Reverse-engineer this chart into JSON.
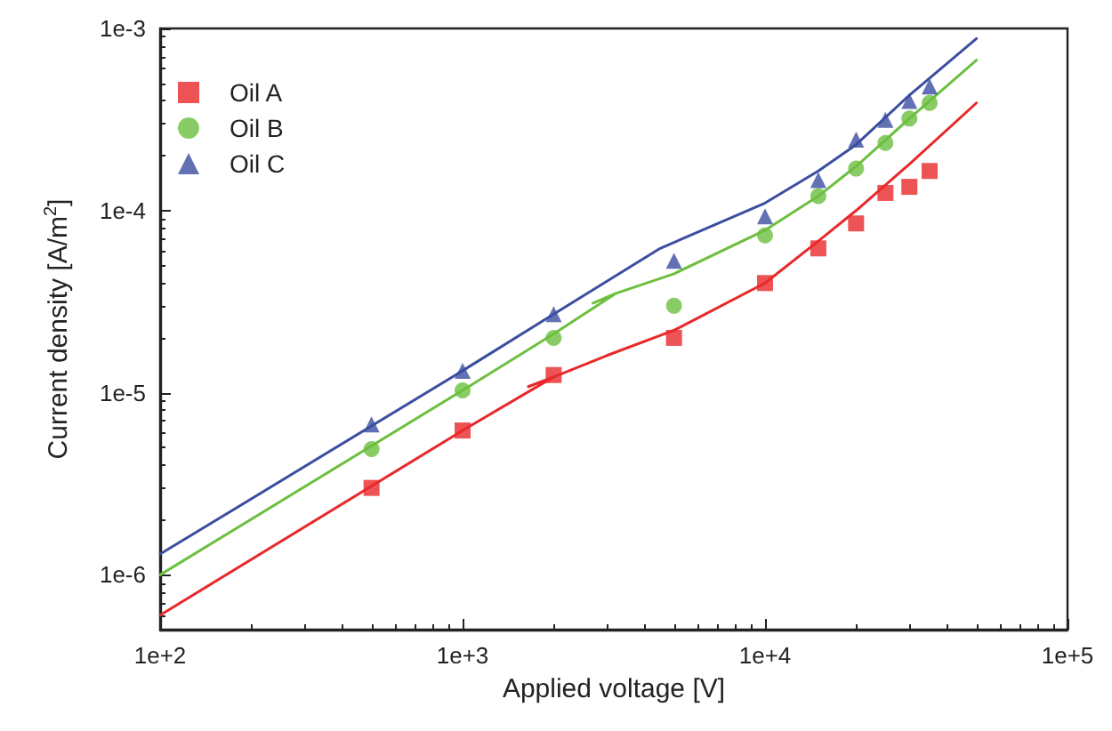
{
  "chart_data": {
    "type": "scatter",
    "xlabel": "Applied voltage [V]",
    "ylabel": "Current density [A/m$^{2}$]",
    "log": "xy",
    "grid": false,
    "legend": "top left",
    "xlim": [
      100,
      100000
    ],
    "xticks": [
      {
        "value": 100,
        "label": "1e+2"
      },
      {
        "value": 1000,
        "label": "1e+3"
      },
      {
        "value": 10000,
        "label": "1e+4"
      },
      {
        "value": 100000,
        "label": "1e+5"
      }
    ],
    "ylim": [
      5e-07,
      0.001
    ],
    "yticks": [
      {
        "value": 1e-06,
        "label": "1e-6"
      },
      {
        "value": 1e-05,
        "label": "1e-5"
      },
      {
        "value": 0.0001,
        "label": "1e-4"
      },
      {
        "value": 0.001,
        "label": "1e-3"
      }
    ],
    "x": [
      500,
      1000,
      2000,
      5000,
      10000,
      15000,
      20000,
      25000,
      30000,
      35000
    ],
    "series": [
      {
        "name": "Oil A",
        "color": "#e8282a",
        "marker": "square",
        "values": [
          3e-06,
          6.2e-06,
          1.25e-05,
          2e-05,
          4e-05,
          6.2e-05,
          8.5e-05,
          0.000125,
          0.000135,
          0.000165
        ]
      },
      {
        "name": "Oil B",
        "color": "#6cbf3f",
        "marker": "circle",
        "values": [
          4.9e-06,
          1.03e-05,
          2e-05,
          3e-05,
          7.3e-05,
          0.00012,
          0.00017,
          0.000235,
          0.00032,
          0.00039
        ]
      },
      {
        "name": "Oil C",
        "color": "#3b4ea0",
        "marker": "triangle",
        "values": [
          6.7e-06,
          1.32e-05,
          2.7e-05,
          5.3e-05,
          9.3e-05,
          0.000147,
          0.000245,
          0.000315,
          0.0004,
          0.00048
        ]
      },
      {
        "type": "line",
        "color": "#e8282a",
        "x": [
          100,
          1000,
          2000,
          1650,
          2000,
          3000,
          5000,
          10000,
          15000,
          20000,
          30000,
          50000
        ],
        "values": [
          6e-07,
          6.2e-06,
          1.22e-05,
          1.08e-05,
          1.22e-05,
          1.6e-05,
          2.2e-05,
          4e-05,
          6.8e-05,
          0.0001,
          0.00018,
          0.00039
        ]
      },
      {
        "type": "line",
        "color": "#6cbf3f",
        "x": [
          100,
          1000,
          2000,
          3200,
          2700,
          3200,
          5000,
          10000,
          15000,
          20000,
          30000,
          50000
        ],
        "values": [
          1e-06,
          1.03e-05,
          2.1e-05,
          3.5e-05,
          3.1e-05,
          3.5e-05,
          4.5e-05,
          7.8e-05,
          0.00012,
          0.000175,
          0.00032,
          0.00067
        ]
      },
      {
        "type": "line",
        "color": "#3b4ea0",
        "x": [
          100,
          1000,
          2000,
          4500,
          10000,
          15000,
          20000,
          30000,
          50000
        ],
        "values": [
          1.3e-06,
          1.32e-05,
          2.7e-05,
          6.2e-05,
          0.00011,
          0.000165,
          0.00023,
          0.00043,
          0.00088
        ]
      }
    ]
  }
}
